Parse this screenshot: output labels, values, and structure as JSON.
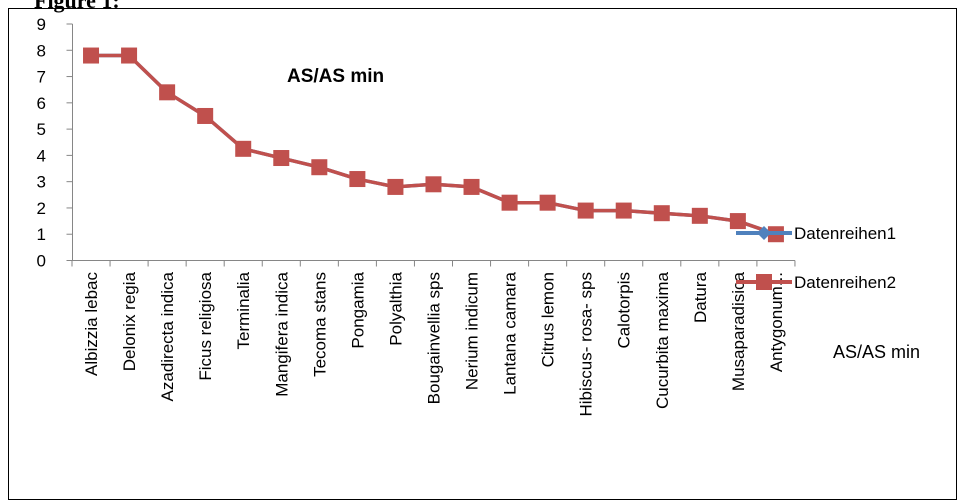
{
  "figure_caption": "Figure 1:",
  "chart_data": {
    "type": "line",
    "title": "AS/AS min",
    "xlabel": "AS/AS min",
    "ylabel": "",
    "ylim": [
      0,
      9
    ],
    "yticks": [
      0,
      1,
      2,
      3,
      4,
      5,
      6,
      7,
      8,
      9
    ],
    "grid": false,
    "legend_position": "right",
    "categories": [
      "Albizzia lebac",
      "Delonix regia",
      "Azadirecta indica",
      "Ficus religiosa",
      "Terminalia",
      "Mangifera indica",
      "Tecoma stans",
      "Pongamia",
      "Polyalthia",
      "Bougainvellia sps",
      "Nerium indicum",
      "Lantana camara",
      "Citrus lemon",
      "Hibiscus- rosa- sps",
      "Calotorpis",
      "Cucurbita maxima",
      "Datura",
      "Musaparadisica",
      "Antygonum..."
    ],
    "series": [
      {
        "name": "Datenreihen1",
        "color": "#4F81BD",
        "marker": "diamond",
        "values": [
          7.8,
          7.8,
          6.4,
          5.5,
          4.25,
          3.9,
          3.55,
          3.1,
          2.8,
          2.9,
          2.8,
          2.2,
          2.2,
          1.9,
          1.9,
          1.8,
          1.7,
          1.5,
          1.0
        ]
      },
      {
        "name": "Datenreihen2",
        "color": "#C0504D",
        "marker": "square",
        "values": [
          7.8,
          7.8,
          6.4,
          5.5,
          4.25,
          3.9,
          3.55,
          3.1,
          2.8,
          2.9,
          2.8,
          2.2,
          2.2,
          1.9,
          1.9,
          1.8,
          1.7,
          1.5,
          1.0
        ]
      }
    ]
  }
}
